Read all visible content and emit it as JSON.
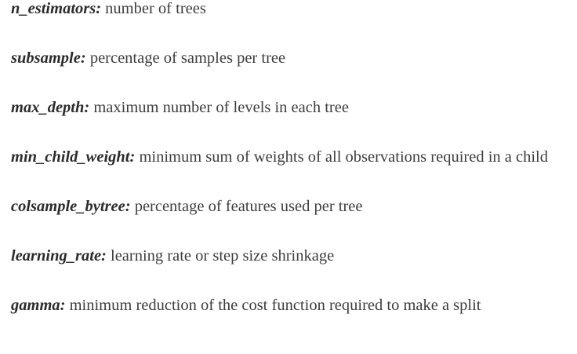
{
  "params": [
    {
      "name": "n_estimators:",
      "desc": "number of trees"
    },
    {
      "name": "subsample:",
      "desc": "percentage of samples per tree"
    },
    {
      "name": "max_depth:",
      "desc": "maximum number of levels in each tree"
    },
    {
      "name": "min_child_weight:",
      "desc": "minimum sum of weights of all observations required in a child"
    },
    {
      "name": "colsample_bytree:",
      "desc": "percentage of features used per tree"
    },
    {
      "name": "learning_rate:",
      "desc": "learning rate or step size shrinkage"
    },
    {
      "name": "gamma:",
      "desc": "minimum reduction of the cost function required to make a split"
    }
  ]
}
